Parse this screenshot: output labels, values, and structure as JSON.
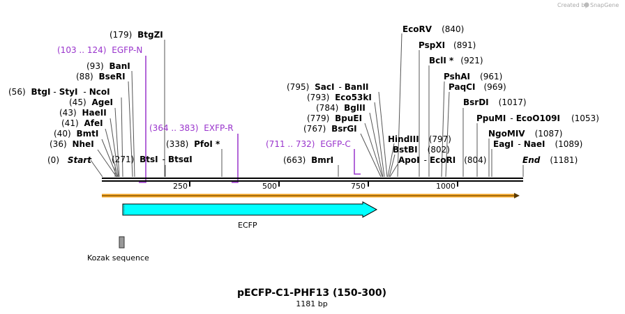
{
  "credit": {
    "text": "Created by",
    "brand": "SnapGene"
  },
  "map": {
    "title": "pECFP-C1-PHF13 (150-300)",
    "length_label": "1181 bp",
    "ticks": [
      "250",
      "500",
      "750",
      "1000"
    ]
  },
  "ends": {
    "start": {
      "label": "Start",
      "pos": "(0)"
    },
    "end": {
      "label": "End",
      "pos": "(1181)"
    }
  },
  "sites": {
    "btgzi": {
      "pos": "(179)",
      "name": "BtgZI"
    },
    "bani": {
      "pos": "(93)",
      "name": "BanI"
    },
    "bseri": {
      "pos": "(88)",
      "name": "BseRI"
    },
    "btgi": {
      "pos": "(56)",
      "name": "BtgI",
      "name2": "StyI",
      "name3": "NcoI"
    },
    "agei": {
      "pos": "(45)",
      "name": "AgeI"
    },
    "haeii": {
      "pos": "(43)",
      "name": "HaeII"
    },
    "afei": {
      "pos": "(41)",
      "name": "AfeI"
    },
    "bmti": {
      "pos": "(40)",
      "name": "BmtI"
    },
    "nhei": {
      "pos": "(36)",
      "name": "NheI"
    },
    "btsi": {
      "pos": "(271)",
      "name": "BtsI",
      "name2": "BtsαI"
    },
    "pfoi": {
      "pos": "(338)",
      "name": "PfoI *"
    },
    "bmri": {
      "pos": "(663)",
      "name": "BmrI"
    },
    "saci": {
      "pos": "(795)",
      "name": "SacI",
      "name2": "BanII"
    },
    "eco53ki": {
      "pos": "(793)",
      "name": "Eco53kI"
    },
    "bglii": {
      "pos": "(784)",
      "name": "BglII"
    },
    "bpuei": {
      "pos": "(779)",
      "name": "BpuEI"
    },
    "bsrgi": {
      "pos": "(767)",
      "name": "BsrGI"
    },
    "ecorv": {
      "name": "EcoRV",
      "pos": "(840)"
    },
    "pspxi": {
      "name": "PspXI",
      "pos": "(891)"
    },
    "bcli": {
      "name": "BclI *",
      "pos": "(921)"
    },
    "pshai": {
      "name": "PshAI",
      "pos": "(961)"
    },
    "paqci": {
      "name": "PaqCI",
      "pos": "(969)"
    },
    "bsrdi": {
      "name": "BsrDI",
      "pos": "(1017)"
    },
    "ppumi": {
      "name": "PpuMI",
      "name2": "EcoO109I",
      "pos": "(1053)"
    },
    "ngomiv": {
      "name": "NgoMIV",
      "pos": "(1087)"
    },
    "eagi": {
      "name": "EagI",
      "name2": "NaeI",
      "pos": "(1089)"
    },
    "hindiii": {
      "name": "HindIII",
      "pos": "(797)"
    },
    "bstbi": {
      "name": "BstBI",
      "pos": "(802)"
    },
    "apoi": {
      "name": "ApoI",
      "name2": "EcoRI",
      "pos": "(804)"
    }
  },
  "primers": {
    "egfp_n": {
      "range": "(103 .. 124)",
      "name": "EGFP-N"
    },
    "exfp_r": {
      "range": "(364 .. 383)",
      "name": "EXFP-R"
    },
    "egfp_c": {
      "range": "(711 .. 732)",
      "name": "EGFP-C"
    }
  },
  "features": {
    "ecfp": {
      "label": "ECFP",
      "color": "#00ffff"
    },
    "kozak": {
      "label": "Kozak sequence",
      "color": "#999999"
    }
  },
  "colors": {
    "backbone": "#000000",
    "primer": "#9933cc",
    "orange_strand": "#f5a623"
  }
}
